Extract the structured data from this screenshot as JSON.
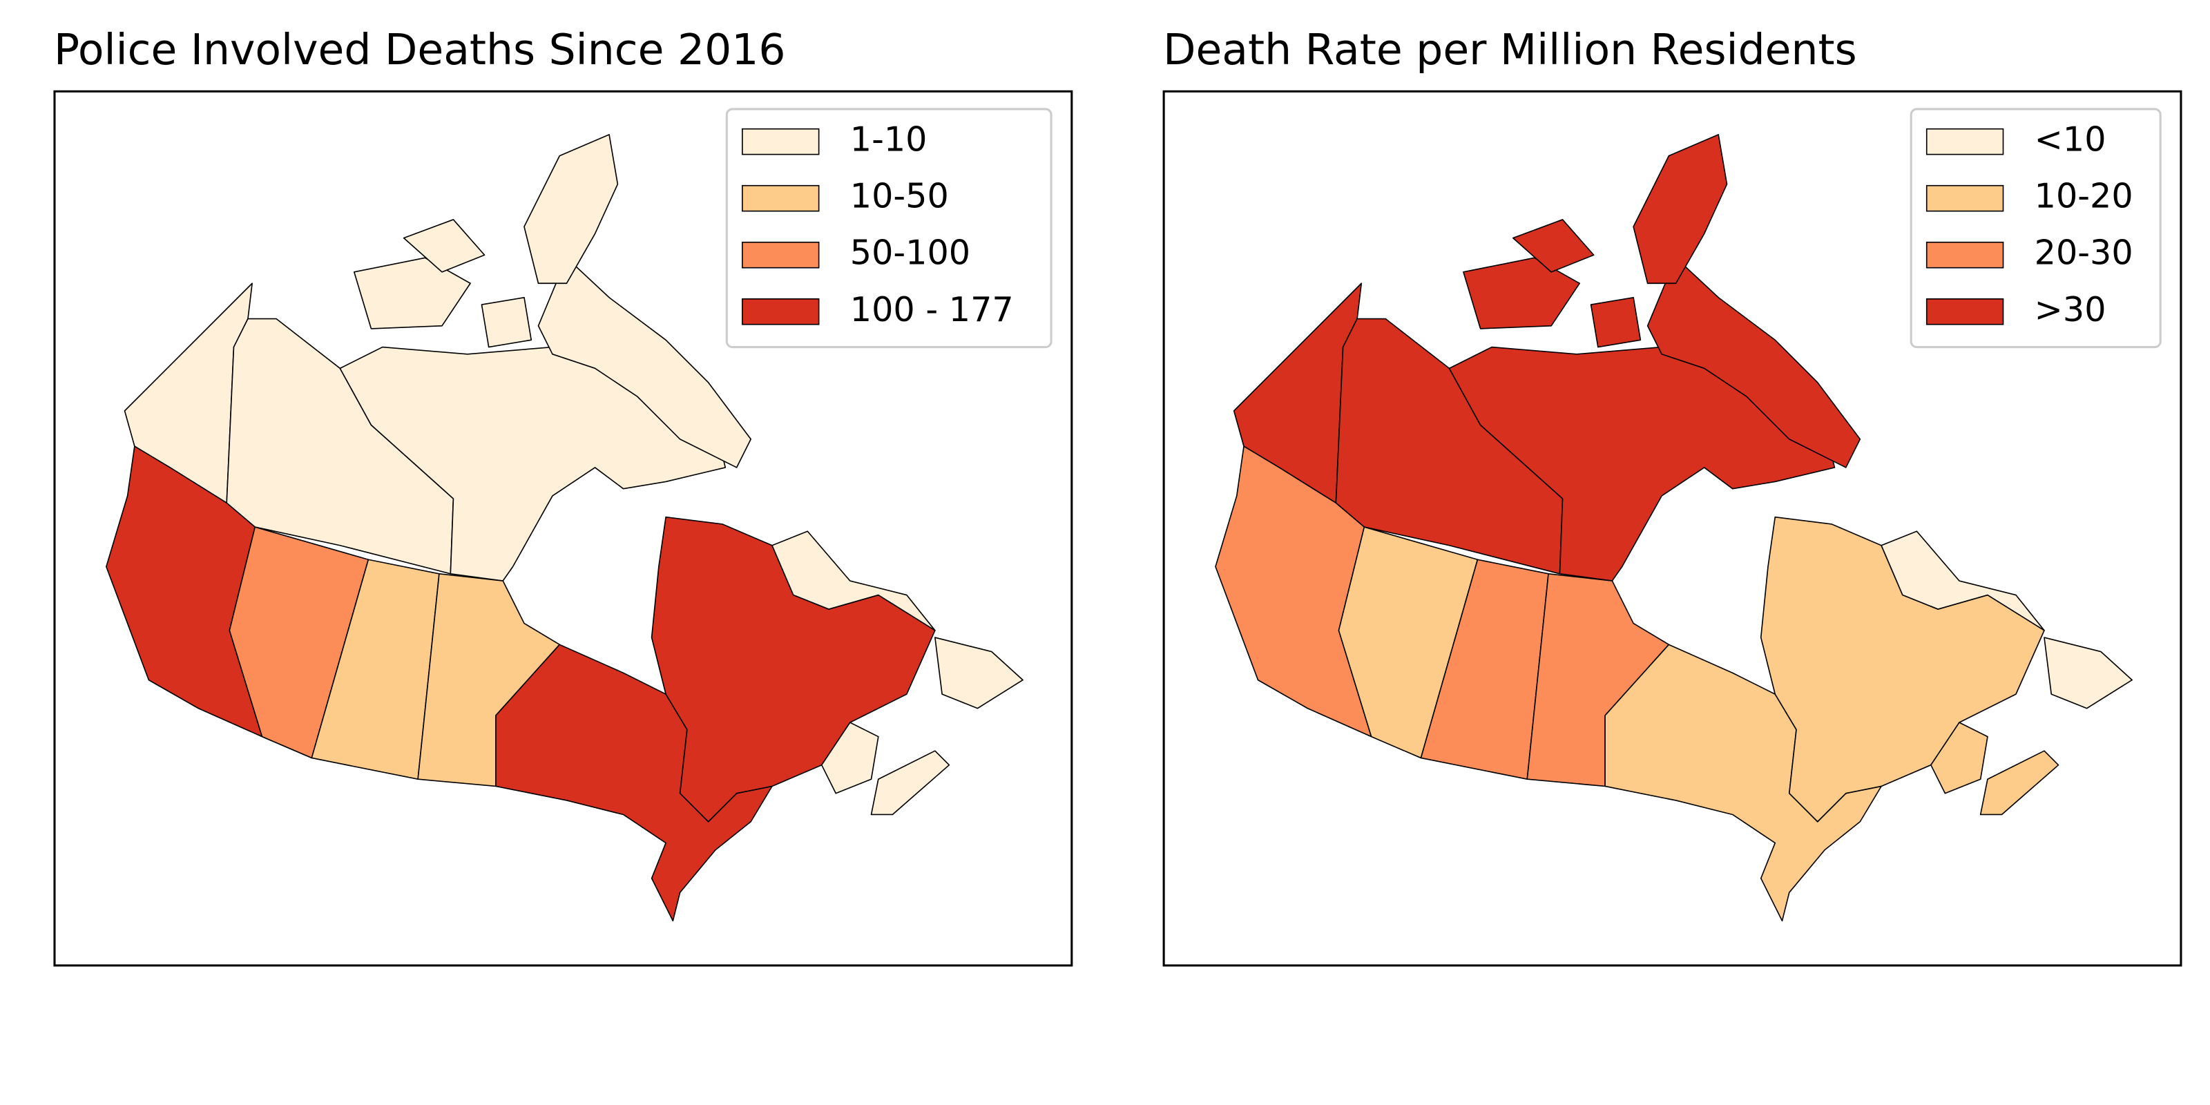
{
  "panels": [
    {
      "title": "Police Involved Deaths Since 2016",
      "legend": [
        {
          "label": "1-10",
          "color": "#fef0d9"
        },
        {
          "label": "10-50",
          "color": "#fdcc8a"
        },
        {
          "label": "50-100",
          "color": "#fc8d59"
        },
        {
          "label": "100 - 177",
          "color": "#d7301f"
        }
      ]
    },
    {
      "title": "Death Rate per Million Residents",
      "legend": [
        {
          "label": "<10",
          "color": "#fef0d9"
        },
        {
          "label": "10-20",
          "color": "#fdcc8a"
        },
        {
          "label": "20-30",
          "color": "#fc8d59"
        },
        {
          "label": ">30",
          "color": "#d7301f"
        }
      ]
    }
  ]
}
